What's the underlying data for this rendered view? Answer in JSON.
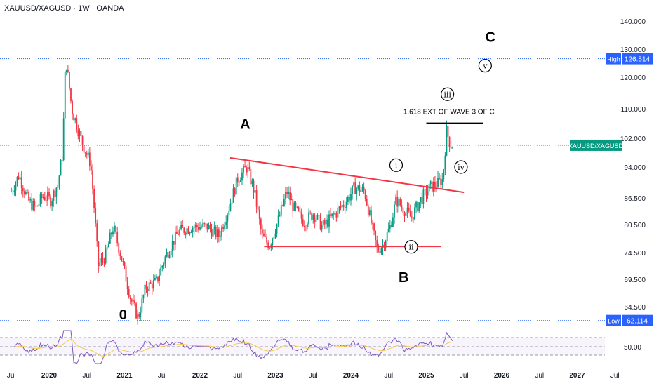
{
  "header": {
    "title": "XAUUSD/XAGUSD · 1W · OANDA"
  },
  "colors": {
    "up": "#089981",
    "down": "#f23645",
    "trendline": "#f23645",
    "rsi": "#7e57c2",
    "rsi_ma": "#f7c948",
    "grid_dot": "#2962ff",
    "axis_text": "#131722",
    "tag_blue": "#2962ff",
    "tag_green": "#089981"
  },
  "chart_data": {
    "type": "candlestick",
    "symbol": "XAUUSD/XAGUSD",
    "timeframe": "1W",
    "source": "OANDA",
    "y_ticks": [
      "140.000",
      "130.000",
      "120.000",
      "110.000",
      "102.000",
      "94.000",
      "86.500",
      "80.500",
      "74.500",
      "69.500",
      "64.500"
    ],
    "rsi_tick": "50.00",
    "x_ticks": [
      "Jul",
      "2020",
      "Jul",
      "2021",
      "Jul",
      "2022",
      "Jul",
      "2023",
      "Jul",
      "2024",
      "Jul",
      "2025",
      "Jul",
      "2026",
      "Jul",
      "2027",
      "Jul"
    ],
    "price_tags": {
      "high": {
        "label": "High",
        "value": "126.514"
      },
      "current": {
        "label": "XAUUSD/XAGUSD"
      },
      "low": {
        "label": "Low",
        "value": "62.114"
      }
    },
    "anchors": [
      {
        "t": 2019.5,
        "v": 88
      },
      {
        "t": 2019.6,
        "v": 92
      },
      {
        "t": 2019.72,
        "v": 86
      },
      {
        "t": 2019.82,
        "v": 84
      },
      {
        "t": 2019.92,
        "v": 87
      },
      {
        "t": 2020.02,
        "v": 86
      },
      {
        "t": 2020.12,
        "v": 90
      },
      {
        "t": 2020.18,
        "v": 98
      },
      {
        "t": 2020.22,
        "v": 126.5
      },
      {
        "t": 2020.3,
        "v": 110
      },
      {
        "t": 2020.45,
        "v": 100
      },
      {
        "t": 2020.55,
        "v": 95
      },
      {
        "t": 2020.65,
        "v": 72
      },
      {
        "t": 2020.75,
        "v": 74
      },
      {
        "t": 2020.85,
        "v": 80
      },
      {
        "t": 2020.95,
        "v": 74
      },
      {
        "t": 2021.08,
        "v": 66
      },
      {
        "t": 2021.18,
        "v": 62.5
      },
      {
        "t": 2021.28,
        "v": 68
      },
      {
        "t": 2021.42,
        "v": 69
      },
      {
        "t": 2021.55,
        "v": 74
      },
      {
        "t": 2021.72,
        "v": 79
      },
      {
        "t": 2021.9,
        "v": 80
      },
      {
        "t": 2022.1,
        "v": 80
      },
      {
        "t": 2022.25,
        "v": 78
      },
      {
        "t": 2022.38,
        "v": 84
      },
      {
        "t": 2022.5,
        "v": 91
      },
      {
        "t": 2022.62,
        "v": 94
      },
      {
        "t": 2022.72,
        "v": 88
      },
      {
        "t": 2022.82,
        "v": 78
      },
      {
        "t": 2022.92,
        "v": 76
      },
      {
        "t": 2023.05,
        "v": 82
      },
      {
        "t": 2023.15,
        "v": 88
      },
      {
        "t": 2023.25,
        "v": 84
      },
      {
        "t": 2023.38,
        "v": 81
      },
      {
        "t": 2023.5,
        "v": 83
      },
      {
        "t": 2023.62,
        "v": 80
      },
      {
        "t": 2023.8,
        "v": 83
      },
      {
        "t": 2023.95,
        "v": 86
      },
      {
        "t": 2024.05,
        "v": 89
      },
      {
        "t": 2024.18,
        "v": 88
      },
      {
        "t": 2024.28,
        "v": 80
      },
      {
        "t": 2024.35,
        "v": 75
      },
      {
        "t": 2024.42,
        "v": 76
      },
      {
        "t": 2024.52,
        "v": 80
      },
      {
        "t": 2024.6,
        "v": 86
      },
      {
        "t": 2024.7,
        "v": 84
      },
      {
        "t": 2024.8,
        "v": 82
      },
      {
        "t": 2024.92,
        "v": 86
      },
      {
        "t": 2025.05,
        "v": 89
      },
      {
        "t": 2025.15,
        "v": 90
      },
      {
        "t": 2025.22,
        "v": 91
      },
      {
        "t": 2025.27,
        "v": 104
      },
      {
        "t": 2025.32,
        "v": 100
      },
      {
        "t": 2025.36,
        "v": 100
      }
    ],
    "annotations": {
      "wave_labels": [
        {
          "text": "0",
          "t": 2020.98,
          "v": 62.3
        },
        {
          "text": "A",
          "t": 2022.6,
          "v": 104.5
        },
        {
          "text": "B",
          "t": 2024.7,
          "v": 69.0
        },
        {
          "text": "C",
          "t": 2025.85,
          "v": 132.5
        }
      ],
      "sub_waves": [
        {
          "text": "i",
          "t": 2024.6,
          "v": 94.5
        },
        {
          "text": "ii",
          "t": 2024.8,
          "v": 75.7
        },
        {
          "text": "iii",
          "t": 2025.28,
          "v": 114.5
        },
        {
          "text": "iv",
          "t": 2025.46,
          "v": 94.0
        },
        {
          "text": "v",
          "t": 2025.78,
          "v": 124.0
        }
      ],
      "note": {
        "text": "1.618 EXT OF WAVE 3 OF C",
        "t": 2025.3,
        "v": 108.5
      },
      "target_line": {
        "t1": 2025.0,
        "t2": 2025.75,
        "v": 106.0
      },
      "trendlines": [
        {
          "t1": 2022.4,
          "v1": 96.5,
          "t2": 2025.5,
          "v2": 87.8
        },
        {
          "t1": 2022.85,
          "v1": 75.8,
          "t2": 2025.2,
          "v2": 75.8
        }
      ]
    }
  }
}
